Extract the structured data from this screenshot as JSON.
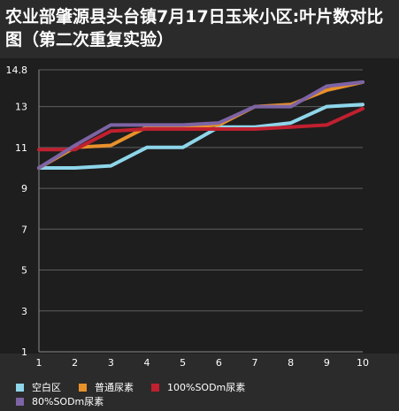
{
  "chart_data": {
    "type": "line",
    "title": "农业部肇源县头台镇7月17日玉米小区:叶片数对比图（第二次重复实验）",
    "x": [
      1,
      2,
      3,
      4,
      5,
      6,
      7,
      8,
      9,
      10
    ],
    "series": [
      {
        "name": "空白区",
        "color": "#8ed6ea",
        "values": [
          10.0,
          10.0,
          10.1,
          11.0,
          11.0,
          12.0,
          12.0,
          12.2,
          13.0,
          13.1
        ]
      },
      {
        "name": "普通尿素",
        "color": "#e8912a",
        "values": [
          10.0,
          11.0,
          11.1,
          12.0,
          12.0,
          12.1,
          13.0,
          13.1,
          13.8,
          14.2
        ]
      },
      {
        "name": "100%SODm尿素",
        "color": "#c0202f",
        "values": [
          10.9,
          10.9,
          11.8,
          11.9,
          11.9,
          11.9,
          11.9,
          12.0,
          12.1,
          12.9
        ]
      },
      {
        "name": "80%SODm尿素",
        "color": "#7d64a5",
        "values": [
          10.0,
          11.1,
          12.1,
          12.1,
          12.1,
          12.2,
          13.0,
          13.0,
          14.0,
          14.2
        ]
      }
    ],
    "yticks": [
      1,
      3,
      5,
      7,
      9,
      11,
      13,
      14.8
    ],
    "ylim": [
      1,
      14.8
    ],
    "xlim": [
      1,
      10
    ],
    "grid": true,
    "legend_position": "bottom"
  }
}
